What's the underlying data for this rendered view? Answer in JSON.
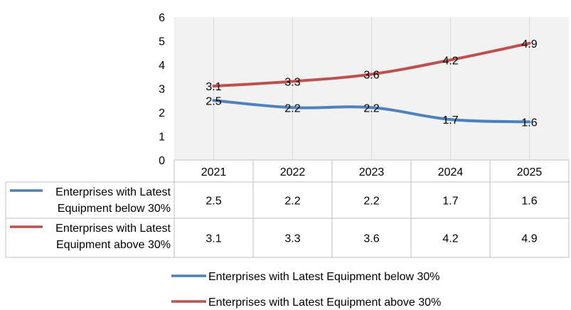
{
  "chart_data": {
    "type": "line",
    "categories": [
      "2021",
      "2022",
      "2023",
      "2024",
      "2025"
    ],
    "ylim": [
      0,
      6
    ],
    "yticks": [
      0,
      1,
      2,
      3,
      4,
      5,
      6
    ],
    "grid": "vertical gridlines at categories",
    "legend_placement": "bottom",
    "data_table": true,
    "series": [
      {
        "name": "Enterprises with Latest Equipment below 30%",
        "table_label_lines": [
          "Enterprises with Latest",
          "Equipment below 30%"
        ],
        "values": [
          2.5,
          2.2,
          2.2,
          1.7,
          1.6
        ],
        "color": "#4F81BD"
      },
      {
        "name": "Enterprises with Latest Equipment above 30%",
        "table_label_lines": [
          "Enterprises with Latest",
          "Equipment above 30%"
        ],
        "values": [
          3.1,
          3.3,
          3.6,
          4.2,
          4.9
        ],
        "color": "#C0504D"
      }
    ]
  }
}
